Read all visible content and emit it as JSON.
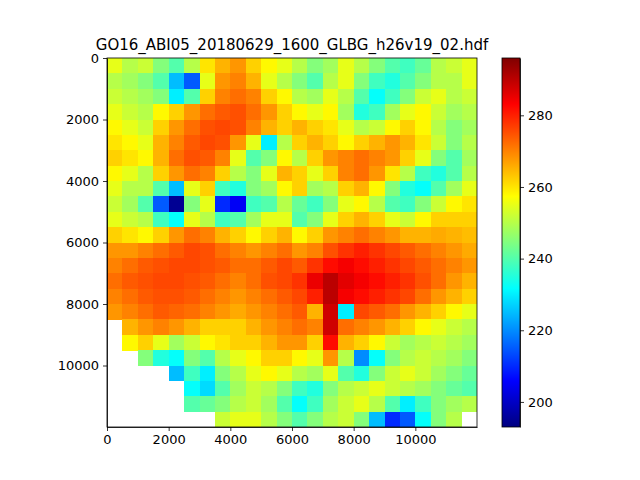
{
  "chart_data": {
    "type": "heatmap",
    "title": "GO16_ABI05_20180629_1600_GLBG_h26v19_02.hdf",
    "color": "jet",
    "x": [
      250,
      750,
      1250,
      1750,
      2250,
      2750,
      3250,
      3750,
      4250,
      4750,
      5250,
      5750,
      6250,
      6750,
      7250,
      7750,
      8250,
      8750,
      9250,
      9750,
      10250,
      10750,
      11250,
      11750
    ],
    "y": [
      250,
      750,
      1250,
      1750,
      2250,
      2750,
      3250,
      3750,
      4250,
      4750,
      5250,
      5750,
      6250,
      6750,
      7250,
      7750,
      8250,
      8750,
      9250,
      9750,
      10250,
      10750,
      11250,
      11750
    ],
    "xlim": [
      0,
      12000
    ],
    "ylim": [
      12000,
      0
    ],
    "xticks": [
      0,
      2000,
      4000,
      6000,
      8000,
      10000
    ],
    "yticks": [
      0,
      2000,
      4000,
      6000,
      8000,
      10000
    ],
    "colorbar": {
      "range": [
        193,
        296
      ],
      "ticks": [
        200,
        220,
        240,
        260,
        280
      ]
    },
    "cells": [
      [
        255,
        250,
        252,
        245,
        240,
        250,
        260,
        265,
        268,
        262,
        258,
        255,
        250,
        245,
        248,
        255,
        250,
        245,
        240,
        238,
        242,
        250,
        252,
        255
      ],
      [
        250,
        248,
        245,
        240,
        225,
        215,
        255,
        268,
        270,
        265,
        255,
        250,
        245,
        240,
        250,
        255,
        245,
        238,
        235,
        240,
        245,
        250,
        250,
        255
      ],
      [
        252,
        250,
        248,
        245,
        230,
        240,
        262,
        270,
        272,
        270,
        262,
        258,
        250,
        248,
        255,
        250,
        240,
        232,
        238,
        245,
        252,
        255,
        250,
        252
      ],
      [
        255,
        252,
        250,
        258,
        262,
        268,
        272,
        274,
        275,
        272,
        268,
        262,
        258,
        255,
        258,
        248,
        235,
        238,
        248,
        255,
        258,
        252,
        248,
        250
      ],
      [
        258,
        255,
        252,
        262,
        268,
        272,
        275,
        276,
        275,
        270,
        265,
        262,
        265,
        262,
        260,
        255,
        250,
        252,
        258,
        262,
        258,
        250,
        245,
        248
      ],
      [
        260,
        258,
        255,
        265,
        270,
        274,
        276,
        275,
        268,
        255,
        230,
        250,
        262,
        265,
        262,
        258,
        262,
        265,
        268,
        265,
        260,
        252,
        245,
        250
      ],
      [
        262,
        260,
        258,
        265,
        272,
        275,
        274,
        270,
        255,
        240,
        245,
        258,
        250,
        262,
        268,
        270,
        272,
        270,
        268,
        262,
        255,
        245,
        240,
        248
      ],
      [
        258,
        255,
        250,
        262,
        268,
        272,
        270,
        262,
        250,
        245,
        255,
        265,
        262,
        255,
        262,
        270,
        272,
        268,
        260,
        250,
        238,
        235,
        240,
        250
      ],
      [
        255,
        250,
        250,
        240,
        225,
        255,
        262,
        238,
        235,
        245,
        248,
        258,
        262,
        248,
        250,
        262,
        265,
        258,
        245,
        235,
        232,
        240,
        248,
        255
      ],
      [
        252,
        248,
        240,
        215,
        195,
        245,
        255,
        210,
        205,
        238,
        240,
        250,
        242,
        238,
        245,
        255,
        258,
        250,
        240,
        238,
        245,
        252,
        258,
        260
      ],
      [
        255,
        252,
        250,
        238,
        232,
        255,
        250,
        238,
        240,
        248,
        255,
        255,
        240,
        245,
        255,
        262,
        265,
        262,
        255,
        252,
        258,
        262,
        262,
        262
      ],
      [
        262,
        260,
        258,
        262,
        268,
        272,
        270,
        265,
        262,
        258,
        262,
        265,
        258,
        262,
        268,
        270,
        272,
        270,
        268,
        265,
        265,
        266,
        265,
        264
      ],
      [
        268,
        268,
        270,
        272,
        274,
        276,
        275,
        272,
        270,
        268,
        270,
        272,
        268,
        270,
        275,
        278,
        280,
        278,
        276,
        274,
        272,
        270,
        268,
        266
      ],
      [
        270,
        272,
        274,
        275,
        276,
        276,
        275,
        274,
        272,
        272,
        274,
        276,
        274,
        278,
        282,
        284,
        282,
        280,
        278,
        276,
        274,
        272,
        270,
        268
      ],
      [
        272,
        274,
        275,
        276,
        276,
        275,
        274,
        272,
        270,
        272,
        275,
        276,
        278,
        285,
        290,
        286,
        284,
        282,
        280,
        278,
        275,
        272,
        268,
        265
      ],
      [
        270,
        272,
        274,
        275,
        275,
        274,
        272,
        270,
        268,
        270,
        272,
        274,
        276,
        280,
        290,
        284,
        282,
        280,
        278,
        276,
        272,
        268,
        265,
        262
      ],
      [
        268,
        270,
        272,
        274,
        273,
        272,
        270,
        268,
        266,
        268,
        270,
        272,
        274,
        265,
        288,
        230,
        276,
        274,
        272,
        268,
        265,
        262,
        258,
        255
      ],
      [
        null,
        265,
        268,
        270,
        268,
        265,
        262,
        262,
        262,
        265,
        268,
        270,
        272,
        270,
        288,
        272,
        270,
        268,
        265,
        262,
        258,
        255,
        252,
        250
      ],
      [
        null,
        258,
        262,
        255,
        248,
        252,
        258,
        260,
        262,
        262,
        265,
        268,
        268,
        262,
        282,
        265,
        262,
        258,
        252,
        248,
        250,
        252,
        250,
        248
      ],
      [
        null,
        null,
        245,
        235,
        232,
        245,
        240,
        250,
        255,
        258,
        262,
        262,
        258,
        255,
        268,
        250,
        220,
        232,
        245,
        250,
        252,
        250,
        248,
        245
      ],
      [
        null,
        null,
        null,
        null,
        225,
        238,
        230,
        245,
        250,
        255,
        258,
        255,
        250,
        248,
        255,
        240,
        235,
        245,
        252,
        255,
        252,
        248,
        245,
        242
      ],
      [
        null,
        null,
        null,
        null,
        null,
        232,
        228,
        240,
        248,
        252,
        250,
        245,
        238,
        235,
        245,
        250,
        252,
        255,
        252,
        250,
        248,
        245,
        242,
        240
      ],
      [
        null,
        null,
        null,
        null,
        null,
        240,
        242,
        245,
        250,
        252,
        248,
        240,
        232,
        238,
        248,
        252,
        255,
        250,
        240,
        230,
        238,
        245,
        248,
        250
      ],
      [
        null,
        null,
        null,
        null,
        null,
        null,
        null,
        252,
        255,
        255,
        250,
        245,
        240,
        245,
        250,
        252,
        245,
        225,
        210,
        215,
        232,
        245,
        250,
        null
      ]
    ]
  }
}
